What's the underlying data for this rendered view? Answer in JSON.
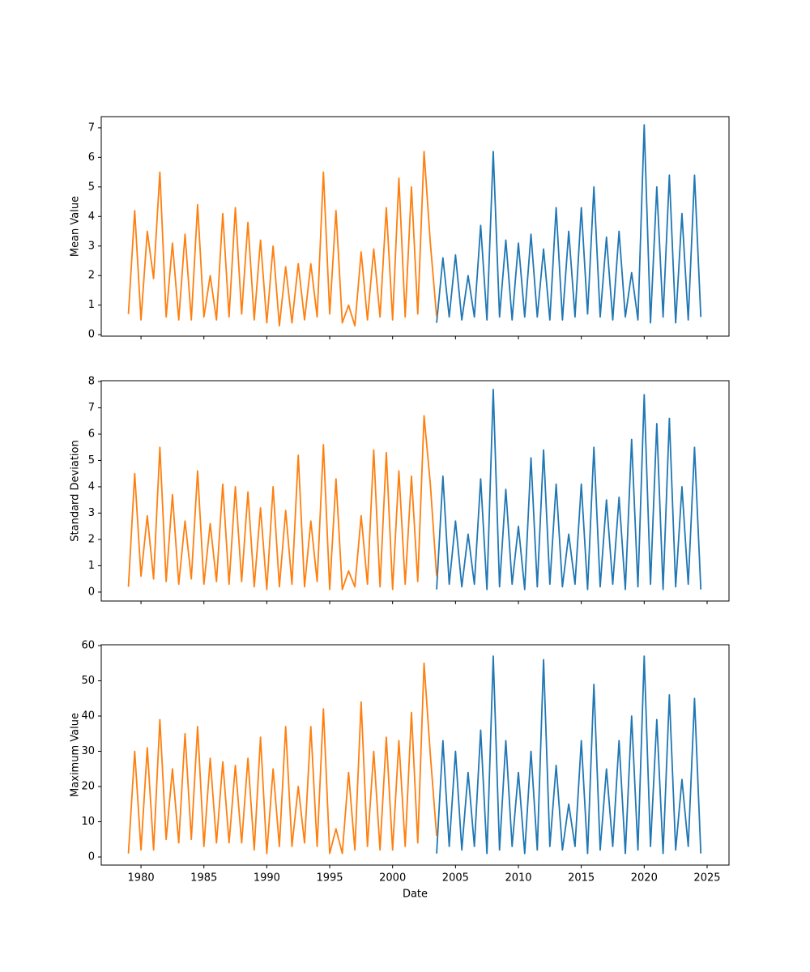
{
  "chart_data": [
    {
      "type": "line",
      "ylabel": "Mean Value",
      "xlim": [
        1976.84,
        2026.74
      ],
      "xticks": [
        1980,
        1985,
        1990,
        1995,
        2000,
        2005,
        2010,
        2015,
        2020,
        2025
      ],
      "show_xtick_labels": false,
      "ylim": [
        -0.05,
        7.38
      ],
      "yticks": [
        0,
        1,
        2,
        3,
        4,
        5,
        6,
        7
      ],
      "series": [
        {
          "color": "#1f77b4",
          "x": [
            2003.5,
            2004,
            2004.5,
            2005,
            2005.5,
            2006,
            2006.5,
            2007,
            2007.5,
            2008,
            2008.5,
            2009,
            2009.5,
            2010,
            2010.5,
            2011,
            2011.5,
            2012,
            2012.5,
            2013,
            2013.5,
            2014,
            2014.5,
            2015,
            2015.5,
            2016,
            2016.5,
            2017,
            2017.5,
            2018,
            2018.5,
            2019,
            2019.5,
            2020,
            2020.5,
            2021,
            2021.5,
            2022,
            2022.5,
            2023,
            2023.5,
            2024,
            2024.5
          ],
          "values": [
            0.4,
            2.6,
            0.6,
            2.7,
            0.5,
            2.0,
            0.6,
            3.7,
            0.5,
            6.2,
            0.6,
            3.2,
            0.5,
            3.1,
            0.6,
            3.4,
            0.6,
            2.9,
            0.5,
            4.3,
            0.5,
            3.5,
            0.6,
            4.3,
            0.7,
            5.0,
            0.6,
            3.3,
            0.5,
            3.5,
            0.6,
            2.1,
            0.5,
            7.1,
            0.4,
            5.0,
            0.6,
            5.4,
            0.4,
            4.1,
            0.5,
            5.4,
            0.6
          ]
        },
        {
          "color": "#ff7f0e",
          "x": [
            1979,
            1979.5,
            1980,
            1980.5,
            1981,
            1981.5,
            1982,
            1982.5,
            1983,
            1983.5,
            1984,
            1984.5,
            1985,
            1985.5,
            1986,
            1986.5,
            1987,
            1987.5,
            1988,
            1988.5,
            1989,
            1989.5,
            1990,
            1990.5,
            1991,
            1991.5,
            1992,
            1992.5,
            1993,
            1993.5,
            1994,
            1994.5,
            1995,
            1995.5,
            1996,
            1996.5,
            1997,
            1997.5,
            1998,
            1998.5,
            1999,
            1999.5,
            2000,
            2000.5,
            2001,
            2001.5,
            2002,
            2002.5,
            2003,
            2003.5
          ],
          "values": [
            0.7,
            4.2,
            0.5,
            3.5,
            1.9,
            5.5,
            0.6,
            3.1,
            0.5,
            3.4,
            0.5,
            4.4,
            0.6,
            2.0,
            0.5,
            4.1,
            0.6,
            4.3,
            0.7,
            3.8,
            0.5,
            3.2,
            0.4,
            3.0,
            0.3,
            2.3,
            0.4,
            2.4,
            0.5,
            2.4,
            0.6,
            5.5,
            0.7,
            4.2,
            0.4,
            1.0,
            0.3,
            2.8,
            0.5,
            2.9,
            0.6,
            4.3,
            0.5,
            5.3,
            0.6,
            5.0,
            0.7,
            6.2,
            3.1,
            0.6
          ]
        }
      ]
    },
    {
      "type": "line",
      "ylabel": "Standard Deviation",
      "xlim": [
        1976.84,
        2026.74
      ],
      "xticks": [
        1980,
        1985,
        1990,
        1995,
        2000,
        2005,
        2010,
        2015,
        2020,
        2025
      ],
      "show_xtick_labels": false,
      "ylim": [
        -0.34,
        8.03
      ],
      "yticks": [
        0,
        1,
        2,
        3,
        4,
        5,
        6,
        7,
        8
      ],
      "series": [
        {
          "color": "#1f77b4",
          "x": [
            2003.5,
            2004,
            2004.5,
            2005,
            2005.5,
            2006,
            2006.5,
            2007,
            2007.5,
            2008,
            2008.5,
            2009,
            2009.5,
            2010,
            2010.5,
            2011,
            2011.5,
            2012,
            2012.5,
            2013,
            2013.5,
            2014,
            2014.5,
            2015,
            2015.5,
            2016,
            2016.5,
            2017,
            2017.5,
            2018,
            2018.5,
            2019,
            2019.5,
            2020,
            2020.5,
            2021,
            2021.5,
            2022,
            2022.5,
            2023,
            2023.5,
            2024,
            2024.5
          ],
          "values": [
            0.1,
            4.4,
            0.3,
            2.7,
            0.2,
            2.2,
            0.3,
            4.3,
            0.1,
            7.7,
            0.2,
            3.9,
            0.3,
            2.5,
            0.1,
            5.1,
            0.2,
            5.4,
            0.3,
            4.1,
            0.2,
            2.2,
            0.3,
            4.1,
            0.1,
            5.5,
            0.2,
            3.5,
            0.3,
            3.6,
            0.1,
            5.8,
            0.2,
            7.5,
            0.3,
            6.4,
            0.1,
            6.6,
            0.2,
            4.0,
            0.3,
            5.5,
            0.1
          ]
        },
        {
          "color": "#ff7f0e",
          "x": [
            1979,
            1979.5,
            1980,
            1980.5,
            1981,
            1981.5,
            1982,
            1982.5,
            1983,
            1983.5,
            1984,
            1984.5,
            1985,
            1985.5,
            1986,
            1986.5,
            1987,
            1987.5,
            1988,
            1988.5,
            1989,
            1989.5,
            1990,
            1990.5,
            1991,
            1991.5,
            1992,
            1992.5,
            1993,
            1993.5,
            1994,
            1994.5,
            1995,
            1995.5,
            1996,
            1996.5,
            1997,
            1997.5,
            1998,
            1998.5,
            1999,
            1999.5,
            2000,
            2000.5,
            2001,
            2001.5,
            2002,
            2002.5,
            2003,
            2003.5
          ],
          "values": [
            0.2,
            4.5,
            0.6,
            2.9,
            0.5,
            5.5,
            0.4,
            3.7,
            0.3,
            2.7,
            0.5,
            4.6,
            0.3,
            2.6,
            0.4,
            4.1,
            0.3,
            4.0,
            0.4,
            3.8,
            0.2,
            3.2,
            0.1,
            4.0,
            0.2,
            3.1,
            0.3,
            5.2,
            0.2,
            2.7,
            0.4,
            5.6,
            0.1,
            4.3,
            0.1,
            0.8,
            0.2,
            2.9,
            0.3,
            5.4,
            0.2,
            5.3,
            0.1,
            4.6,
            0.3,
            4.4,
            0.4,
            6.7,
            4.1,
            0.6
          ]
        }
      ]
    },
    {
      "type": "line",
      "ylabel": "Maximum Value",
      "xlabel": "Date",
      "xlim": [
        1976.84,
        2026.74
      ],
      "xticks": [
        1980,
        1985,
        1990,
        1995,
        2000,
        2005,
        2010,
        2015,
        2020,
        2025
      ],
      "show_xtick_labels": true,
      "ylim": [
        -2.3,
        60.23
      ],
      "yticks": [
        0,
        10,
        20,
        30,
        40,
        50,
        60
      ],
      "series": [
        {
          "color": "#1f77b4",
          "x": [
            2003.5,
            2004,
            2004.5,
            2005,
            2005.5,
            2006,
            2006.5,
            2007,
            2007.5,
            2008,
            2008.5,
            2009,
            2009.5,
            2010,
            2010.5,
            2011,
            2011.5,
            2012,
            2012.5,
            2013,
            2013.5,
            2014,
            2014.5,
            2015,
            2015.5,
            2016,
            2016.5,
            2017,
            2017.5,
            2018,
            2018.5,
            2019,
            2019.5,
            2020,
            2020.5,
            2021,
            2021.5,
            2022,
            2022.5,
            2023,
            2023.5,
            2024,
            2024.5
          ],
          "values": [
            1,
            33,
            3,
            30,
            2,
            24,
            3,
            36,
            1,
            57,
            2,
            33,
            3,
            24,
            1,
            30,
            2,
            56,
            3,
            26,
            2,
            15,
            3,
            33,
            1,
            49,
            2,
            25,
            3,
            33,
            1,
            40,
            2,
            57,
            3,
            39,
            1,
            46,
            2,
            22,
            3,
            45,
            1
          ]
        },
        {
          "color": "#ff7f0e",
          "x": [
            1979,
            1979.5,
            1980,
            1980.5,
            1981,
            1981.5,
            1982,
            1982.5,
            1983,
            1983.5,
            1984,
            1984.5,
            1985,
            1985.5,
            1986,
            1986.5,
            1987,
            1987.5,
            1988,
            1988.5,
            1989,
            1989.5,
            1990,
            1990.5,
            1991,
            1991.5,
            1992,
            1992.5,
            1993,
            1993.5,
            1994,
            1994.5,
            1995,
            1995.5,
            1996,
            1996.5,
            1997,
            1997.5,
            1998,
            1998.5,
            1999,
            1999.5,
            2000,
            2000.5,
            2001,
            2001.5,
            2002,
            2002.5,
            2003,
            2003.5
          ],
          "values": [
            1,
            30,
            2,
            31,
            2,
            39,
            5,
            25,
            4,
            35,
            5,
            37,
            3,
            28,
            4,
            27,
            4,
            26,
            4,
            28,
            2,
            34,
            1,
            25,
            3,
            37,
            3,
            20,
            4,
            37,
            3,
            42,
            1,
            8,
            1,
            24,
            2,
            44,
            3,
            30,
            2,
            34,
            2,
            33,
            3,
            41,
            4,
            55,
            29,
            6
          ]
        }
      ]
    }
  ]
}
